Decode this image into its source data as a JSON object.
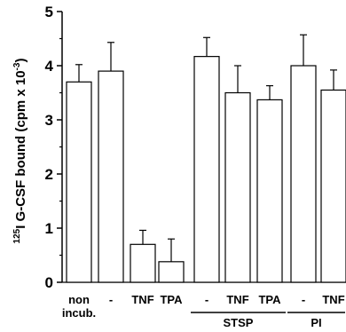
{
  "chart_data": {
    "type": "bar",
    "ylabel": "125I G-CSF bound (cpm x 10-3)",
    "ylabel_parts": {
      "superscript_prefix": "125",
      "main": "I G-CSF bound  (cpm x 10",
      "superscript_suffix": "-3",
      "close": ")"
    },
    "ylim": [
      0,
      5
    ],
    "yticks": [
      "0",
      "1",
      "2",
      "3",
      "4",
      "5"
    ],
    "categories": [
      "non incub.",
      "-",
      "TNF",
      "TPA",
      "-",
      "TNF",
      "TPA",
      "-",
      "TNF"
    ],
    "category_labels": [
      {
        "line1": "non",
        "line2": "incub."
      },
      {
        "line1": "-",
        "line2": ""
      },
      {
        "line1": "TNF",
        "line2": ""
      },
      {
        "line1": "TPA",
        "line2": ""
      },
      {
        "line1": "-",
        "line2": ""
      },
      {
        "line1": "TNF",
        "line2": ""
      },
      {
        "line1": "TPA",
        "line2": ""
      },
      {
        "line1": "-",
        "line2": ""
      },
      {
        "line1": "TNF",
        "line2": ""
      }
    ],
    "values": [
      3.7,
      3.9,
      0.7,
      0.38,
      4.17,
      3.5,
      3.37,
      4.0,
      3.55
    ],
    "errors": [
      0.32,
      0.53,
      0.26,
      0.42,
      0.35,
      0.5,
      0.26,
      0.57,
      0.37
    ],
    "groups": [
      {
        "label": "STSP",
        "from": 4,
        "to": 6
      },
      {
        "label": "PI",
        "from": 7,
        "to": 8
      }
    ],
    "grid": false,
    "bar_color": "#ffffff",
    "edge_color": "#000000"
  }
}
